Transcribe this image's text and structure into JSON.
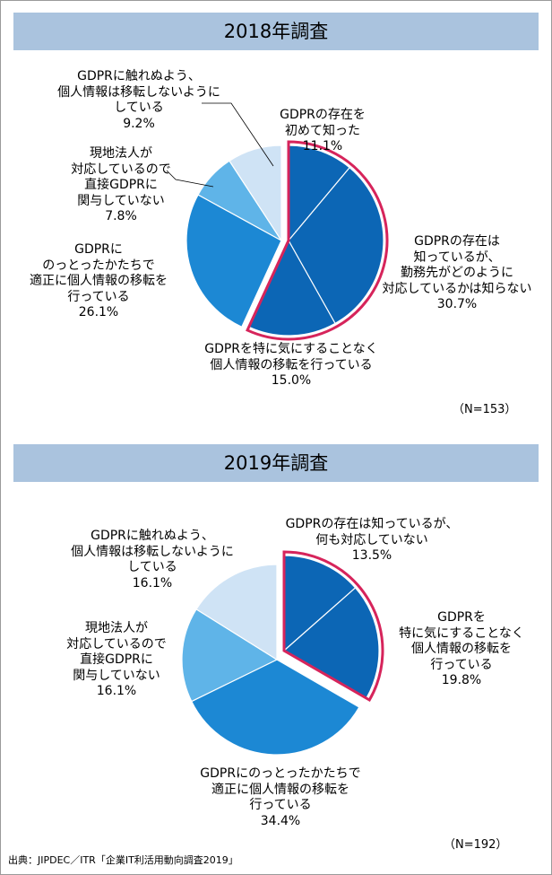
{
  "chart_data": [
    {
      "type": "pie",
      "title": "2018年調査",
      "n_label": "（N=153）",
      "slices": [
        {
          "label": "GDPRの存在を\n初めて知った",
          "value": 11.1,
          "value_label": "11.1%",
          "color": "#0c66b5",
          "highlight": true
        },
        {
          "label": "GDPRの存在は\n知っているが、\n勤務先がどのように\n対応しているかは知らない",
          "value": 30.7,
          "value_label": "30.7%",
          "color": "#0c66b5",
          "highlight": true
        },
        {
          "label": "GDPRを特に気にすることなく\n個人情報の移転を行っている",
          "value": 15.0,
          "value_label": "15.0%",
          "color": "#0c66b5",
          "highlight": true
        },
        {
          "label": "GDPRに\nのっとったかたちで\n適正に個人情報の移転を\n行っている",
          "value": 26.1,
          "value_label": "26.1%",
          "color": "#1c88d4",
          "highlight": false
        },
        {
          "label": "現地法人が\n対応しているので\n直接GDPRに\n関与していない",
          "value": 7.8,
          "value_label": "7.8%",
          "color": "#5fb4e8",
          "highlight": false
        },
        {
          "label": "GDPRに触れぬよう、\n個人情報は移転しないように\nしている",
          "value": 9.2,
          "value_label": "9.2%",
          "color": "#cfe3f5",
          "highlight": false
        }
      ]
    },
    {
      "type": "pie",
      "title": "2019年調査",
      "n_label": "（N=192）",
      "slices": [
        {
          "label": "GDPRの存在は知っているが、\n何も対応していない",
          "value": 13.5,
          "value_label": "13.5%",
          "color": "#0c66b5",
          "highlight": true
        },
        {
          "label": "GDPRを\n特に気にすることなく\n個人情報の移転を\n行っている",
          "value": 19.8,
          "value_label": "19.8%",
          "color": "#0c66b5",
          "highlight": true
        },
        {
          "label": "GDPRにのっとったかたちで\n適正に個人情報の移転を\n行っている",
          "value": 34.4,
          "value_label": "34.4%",
          "color": "#1c88d4",
          "highlight": false
        },
        {
          "label": "現地法人が\n対応しているので\n直接GDPRに\n関与していない",
          "value": 16.1,
          "value_label": "16.1%",
          "color": "#5fb4e8",
          "highlight": false
        },
        {
          "label": "GDPRに触れぬよう、\n個人情報は移転しないように\nしている",
          "value": 16.1,
          "value_label": "16.1%",
          "color": "#cfe3f5",
          "highlight": false
        }
      ]
    }
  ],
  "source": "出典：JIPDEC／ITR「企業IT利活用動向調査2019」",
  "colors": {
    "banner": "#aac3de",
    "highlight_outline": "#d6245b"
  }
}
